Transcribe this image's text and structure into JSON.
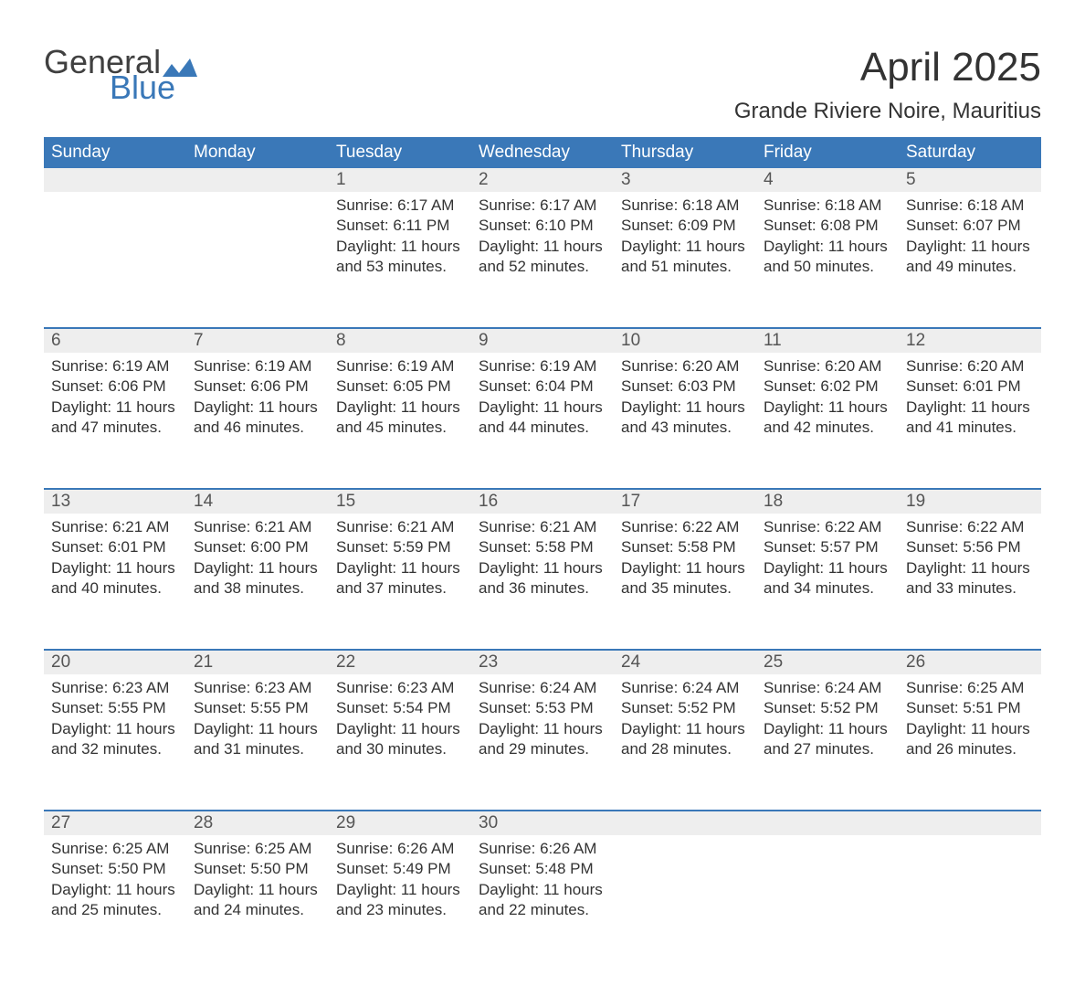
{
  "logo": {
    "text_general": "General",
    "text_blue": "Blue",
    "icon_color": "#3a78b8",
    "text_dark": "#404040"
  },
  "title": "April 2025",
  "location": "Grande Riviere Noire, Mauritius",
  "colors": {
    "header_bg": "#3a78b8",
    "header_text": "#ffffff",
    "daynum_bg": "#eeeeee",
    "daynum_text": "#555555",
    "cell_text": "#333333",
    "week_separator": "#3a78b8",
    "page_bg": "#ffffff"
  },
  "typography": {
    "title_fontsize": 44,
    "location_fontsize": 24,
    "header_fontsize": 19,
    "daynum_fontsize": 19,
    "cell_fontsize": 17
  },
  "day_headers": [
    "Sunday",
    "Monday",
    "Tuesday",
    "Wednesday",
    "Thursday",
    "Friday",
    "Saturday"
  ],
  "weeks": [
    [
      null,
      null,
      {
        "n": "1",
        "sunrise": "6:17 AM",
        "sunset": "6:11 PM",
        "dl1": "Daylight: 11 hours",
        "dl2": "and 53 minutes."
      },
      {
        "n": "2",
        "sunrise": "6:17 AM",
        "sunset": "6:10 PM",
        "dl1": "Daylight: 11 hours",
        "dl2": "and 52 minutes."
      },
      {
        "n": "3",
        "sunrise": "6:18 AM",
        "sunset": "6:09 PM",
        "dl1": "Daylight: 11 hours",
        "dl2": "and 51 minutes."
      },
      {
        "n": "4",
        "sunrise": "6:18 AM",
        "sunset": "6:08 PM",
        "dl1": "Daylight: 11 hours",
        "dl2": "and 50 minutes."
      },
      {
        "n": "5",
        "sunrise": "6:18 AM",
        "sunset": "6:07 PM",
        "dl1": "Daylight: 11 hours",
        "dl2": "and 49 minutes."
      }
    ],
    [
      {
        "n": "6",
        "sunrise": "6:19 AM",
        "sunset": "6:06 PM",
        "dl1": "Daylight: 11 hours",
        "dl2": "and 47 minutes."
      },
      {
        "n": "7",
        "sunrise": "6:19 AM",
        "sunset": "6:06 PM",
        "dl1": "Daylight: 11 hours",
        "dl2": "and 46 minutes."
      },
      {
        "n": "8",
        "sunrise": "6:19 AM",
        "sunset": "6:05 PM",
        "dl1": "Daylight: 11 hours",
        "dl2": "and 45 minutes."
      },
      {
        "n": "9",
        "sunrise": "6:19 AM",
        "sunset": "6:04 PM",
        "dl1": "Daylight: 11 hours",
        "dl2": "and 44 minutes."
      },
      {
        "n": "10",
        "sunrise": "6:20 AM",
        "sunset": "6:03 PM",
        "dl1": "Daylight: 11 hours",
        "dl2": "and 43 minutes."
      },
      {
        "n": "11",
        "sunrise": "6:20 AM",
        "sunset": "6:02 PM",
        "dl1": "Daylight: 11 hours",
        "dl2": "and 42 minutes."
      },
      {
        "n": "12",
        "sunrise": "6:20 AM",
        "sunset": "6:01 PM",
        "dl1": "Daylight: 11 hours",
        "dl2": "and 41 minutes."
      }
    ],
    [
      {
        "n": "13",
        "sunrise": "6:21 AM",
        "sunset": "6:01 PM",
        "dl1": "Daylight: 11 hours",
        "dl2": "and 40 minutes."
      },
      {
        "n": "14",
        "sunrise": "6:21 AM",
        "sunset": "6:00 PM",
        "dl1": "Daylight: 11 hours",
        "dl2": "and 38 minutes."
      },
      {
        "n": "15",
        "sunrise": "6:21 AM",
        "sunset": "5:59 PM",
        "dl1": "Daylight: 11 hours",
        "dl2": "and 37 minutes."
      },
      {
        "n": "16",
        "sunrise": "6:21 AM",
        "sunset": "5:58 PM",
        "dl1": "Daylight: 11 hours",
        "dl2": "and 36 minutes."
      },
      {
        "n": "17",
        "sunrise": "6:22 AM",
        "sunset": "5:58 PM",
        "dl1": "Daylight: 11 hours",
        "dl2": "and 35 minutes."
      },
      {
        "n": "18",
        "sunrise": "6:22 AM",
        "sunset": "5:57 PM",
        "dl1": "Daylight: 11 hours",
        "dl2": "and 34 minutes."
      },
      {
        "n": "19",
        "sunrise": "6:22 AM",
        "sunset": "5:56 PM",
        "dl1": "Daylight: 11 hours",
        "dl2": "and 33 minutes."
      }
    ],
    [
      {
        "n": "20",
        "sunrise": "6:23 AM",
        "sunset": "5:55 PM",
        "dl1": "Daylight: 11 hours",
        "dl2": "and 32 minutes."
      },
      {
        "n": "21",
        "sunrise": "6:23 AM",
        "sunset": "5:55 PM",
        "dl1": "Daylight: 11 hours",
        "dl2": "and 31 minutes."
      },
      {
        "n": "22",
        "sunrise": "6:23 AM",
        "sunset": "5:54 PM",
        "dl1": "Daylight: 11 hours",
        "dl2": "and 30 minutes."
      },
      {
        "n": "23",
        "sunrise": "6:24 AM",
        "sunset": "5:53 PM",
        "dl1": "Daylight: 11 hours",
        "dl2": "and 29 minutes."
      },
      {
        "n": "24",
        "sunrise": "6:24 AM",
        "sunset": "5:52 PM",
        "dl1": "Daylight: 11 hours",
        "dl2": "and 28 minutes."
      },
      {
        "n": "25",
        "sunrise": "6:24 AM",
        "sunset": "5:52 PM",
        "dl1": "Daylight: 11 hours",
        "dl2": "and 27 minutes."
      },
      {
        "n": "26",
        "sunrise": "6:25 AM",
        "sunset": "5:51 PM",
        "dl1": "Daylight: 11 hours",
        "dl2": "and 26 minutes."
      }
    ],
    [
      {
        "n": "27",
        "sunrise": "6:25 AM",
        "sunset": "5:50 PM",
        "dl1": "Daylight: 11 hours",
        "dl2": "and 25 minutes."
      },
      {
        "n": "28",
        "sunrise": "6:25 AM",
        "sunset": "5:50 PM",
        "dl1": "Daylight: 11 hours",
        "dl2": "and 24 minutes."
      },
      {
        "n": "29",
        "sunrise": "6:26 AM",
        "sunset": "5:49 PM",
        "dl1": "Daylight: 11 hours",
        "dl2": "and 23 minutes."
      },
      {
        "n": "30",
        "sunrise": "6:26 AM",
        "sunset": "5:48 PM",
        "dl1": "Daylight: 11 hours",
        "dl2": "and 22 minutes."
      },
      null,
      null,
      null
    ]
  ],
  "labels": {
    "sunrise_prefix": "Sunrise: ",
    "sunset_prefix": "Sunset: "
  }
}
